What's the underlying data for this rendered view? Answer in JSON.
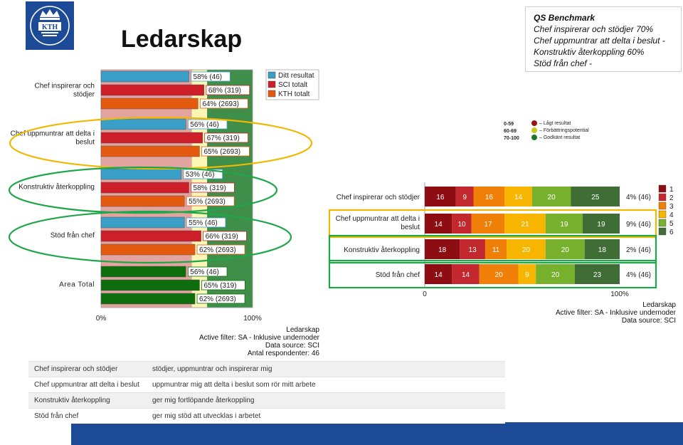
{
  "page": {
    "title": "Ledarskap"
  },
  "qs_benchmark": {
    "title": "QS Benchmark",
    "lines": [
      "Chef inspirerar och stödjer 70%",
      "Chef uppmuntrar att delta i beslut -",
      "Konstruktiv återkoppling 60%",
      "Stöd från chef -"
    ]
  },
  "chart_data": [
    {
      "type": "bar",
      "orientation": "horizontal",
      "categories": [
        "Chef inspirerar och stödjer",
        "Chef uppmuntrar att delta i beslut",
        "Konstruktiv återkoppling",
        "Stöd från chef",
        "Area Total"
      ],
      "series": [
        {
          "name": "Ditt resultat",
          "values": [
            58,
            56,
            53,
            55,
            56
          ],
          "n": [
            46,
            46,
            46,
            46,
            46
          ],
          "labels": [
            "58% (46)",
            "56% (46)",
            "53% (46)",
            "55% (46)",
            "56% (46)"
          ]
        },
        {
          "name": "SCI totalt",
          "values": [
            68,
            67,
            58,
            66,
            65
          ],
          "n": [
            319,
            319,
            319,
            319,
            319
          ],
          "labels": [
            "68% (319)",
            "67% (319)",
            "58% (319)",
            "66% (319)",
            "65% (319)"
          ]
        },
        {
          "name": "KTH totalt",
          "values": [
            64,
            65,
            55,
            62,
            62
          ],
          "n": [
            2693,
            2693,
            2693,
            2693,
            2693
          ],
          "labels": [
            "64% (2693)",
            "65% (2693)",
            "55% (2693)",
            "62% (2693)",
            "62% (2693)"
          ]
        }
      ],
      "xlim": [
        0,
        100
      ],
      "x_tick_labels": [
        "0%",
        "100%"
      ],
      "background_bands": [
        {
          "from": 0,
          "to": 59,
          "color": "#e3a4a0"
        },
        {
          "from": 60,
          "to": 69,
          "color": "#fbf6b4"
        },
        {
          "from": 70,
          "to": 100,
          "color": "#3f8f4a"
        }
      ],
      "highlighted_categories": [
        {
          "category": "Chef uppmuntrar att delta i beslut",
          "color": "#f0b800"
        },
        {
          "category": "Konstruktiv återkoppling",
          "color": "#1fa64a"
        },
        {
          "category": "Stöd från chef",
          "color": "#1fa64a"
        }
      ],
      "legend_placement": "top-right",
      "notes": [
        "Ledarskap",
        "Active filter: SA - Inklusive undernoder",
        "Data source: SCI",
        "Antal respondenter: 46"
      ],
      "colors": {
        "ditt": "#3a9fc6",
        "sci": "#cc1f2a",
        "kth": "#e45b10",
        "area": "#0e6e0e"
      }
    },
    {
      "type": "bar",
      "stacked": true,
      "orientation": "horizontal",
      "categories": [
        "Chef inspirerar och stödjer",
        "Chef uppmuntrar att delta i beslut",
        "Konstruktiv återkoppling",
        "Stöd från chef"
      ],
      "series": [
        {
          "name": "1",
          "values": [
            16,
            14,
            18,
            14
          ]
        },
        {
          "name": "2",
          "values": [
            9,
            10,
            13,
            14
          ]
        },
        {
          "name": "3",
          "values": [
            16,
            17,
            11,
            20
          ]
        },
        {
          "name": "4",
          "values": [
            14,
            21,
            20,
            9
          ]
        },
        {
          "name": "5",
          "values": [
            20,
            19,
            20,
            20
          ]
        },
        {
          "name": "6",
          "values": [
            25,
            19,
            18,
            23
          ]
        }
      ],
      "right_labels": [
        "4% (46)",
        "9% (46)",
        "2% (46)",
        "4% (46)"
      ],
      "xlim": [
        0,
        100
      ],
      "x_tick_labels": [
        "0",
        "100%"
      ],
      "legend_placement": "right",
      "colors": [
        "#8e0d12",
        "#c2282d",
        "#f07f08",
        "#f7b500",
        "#77b02c",
        "#3f6d35"
      ],
      "highlighted_categories": [
        {
          "category": "Chef uppmuntrar att delta i beslut",
          "color": "#f0b800"
        },
        {
          "category": "Konstruktiv återkoppling",
          "color": "#1fa64a"
        },
        {
          "category": "Stöd från chef",
          "color": "#1fa64a"
        }
      ],
      "scale_legend": [
        {
          "range": "0-59",
          "label": "– Lågt resultat",
          "color": "#9b1414"
        },
        {
          "range": "60-69",
          "label": "– Förbättringspotential",
          "color": "#c8c81a"
        },
        {
          "range": "70-100",
          "label": "– Godkänt resultat",
          "color": "#1a7a2a"
        }
      ],
      "notes": [
        "Ledarskap",
        "Active filter: SA - Inklusive undernoder",
        "Data source: SCI"
      ]
    }
  ],
  "description_table": [
    {
      "name": "Chef inspirerar och stödjer",
      "text": "stödjer, uppmuntrar och inspirerar mig"
    },
    {
      "name": "Chef uppmuntrar att delta i beslut",
      "text": "uppmuntrar mig att delta i beslut som rör mitt arbete"
    },
    {
      "name": "Konstruktiv återkoppling",
      "text": "ger mig fortlöpande återkoppling"
    },
    {
      "name": "Stöd från chef",
      "text": "ger mig stöd att utvecklas i arbetet"
    }
  ]
}
